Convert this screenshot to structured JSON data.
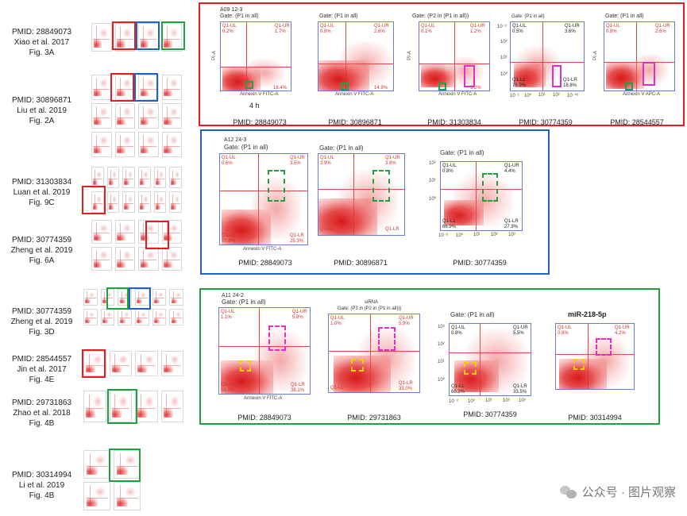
{
  "references": [
    {
      "pmid": "PMID: 28849073",
      "author": "Xiao et al. 2017",
      "fig": "Fig. 3A"
    },
    {
      "pmid": "PMID: 30896871",
      "author": "Liu et al. 2019",
      "fig": "Fig. 2A"
    },
    {
      "pmid": "PMID: 31303834",
      "author": "Luan et al. 2019",
      "fig": "Fig. 9C"
    },
    {
      "pmid": "PMID: 30774359",
      "author": "Zheng et al. 2019",
      "fig": "Fig. 6A"
    },
    {
      "pmid": "PMID: 30774359",
      "author": "Zheng et al. 2019",
      "fig": "Fig. 3D"
    },
    {
      "pmid": "PMID: 28544557",
      "author": "Jin et al. 2017",
      "fig": "Fig. 4E"
    },
    {
      "pmid": "PMID: 29731863",
      "author": "Zhao et al. 2018",
      "fig": "Fig. 4B"
    },
    {
      "pmid": "PMID: 30314994",
      "author": "Li et al. 2019",
      "fig": "Fig. 4B"
    }
  ],
  "colors": {
    "red": "#e02020",
    "blue": "#2062c0",
    "green": "#20a040",
    "magenta": "#e030c0",
    "yellow": "#f0d000"
  },
  "red_panel": {
    "plots": [
      {
        "title": "A09 12-3",
        "gate": "Gate: (P1 in all)",
        "ul": "Q1-UL",
        "ulv": "0.2%",
        "ur": "Q1-UR",
        "urv": "1.7%",
        "lrv": "16.4%",
        "xaxis": "Annexin V FITC-A",
        "yaxis": "PI-A",
        "label": "4 h",
        "pmid": "PMID: 28849073"
      },
      {
        "gate": "Gate: (P1 in all)",
        "ul": "Q1-UL",
        "ulv": "0.8%",
        "ur": "Q1-UR",
        "urv": "2.6%",
        "lrv": "14.9%",
        "xaxis": "Annexin V FITC-A",
        "pmid": "PMID: 30896871"
      },
      {
        "gate": "Gate: (P2 in (P1 in all))",
        "ul": "Q1-UL",
        "ulv": "0.1%",
        "ur": "Q1-UR",
        "urv": "1.2%",
        "lrv": "3.2%",
        "xaxis": "Annexin V FITC-A",
        "yaxis": "PI-A",
        "pmid": "PMID: 31303834"
      },
      {
        "gate": "Gate: (P1 in all)",
        "ul": "Q1-UL",
        "ulv": "0.5%",
        "ur": "Q1-UR",
        "urv": "3.6%",
        "ll": "Q1-LL",
        "llv": "76.9%",
        "lr": "Q1-LR",
        "lrv": "18.8%",
        "ticks": [
          "10⁻¹",
          "10⁰",
          "10¹",
          "10²",
          "10³",
          "10⁻⁰²",
          "10⁻²"
        ],
        "pmid": "PMID: 30774359"
      },
      {
        "gate": "Gate: (P1 in all)",
        "ul": "Q1-UL",
        "ulv": "0.8%",
        "ur": "Q1-UR",
        "urv": "2.6%",
        "xaxis": "Annexin V APC-A",
        "yaxis": "PI-A",
        "pmid": "PMID: 28544557"
      }
    ]
  },
  "blue_panel": {
    "plots": [
      {
        "title": "A12 24-3",
        "gate": "Gate: (P1 in all)",
        "ul": "Q1-UL",
        "ulv": "0.6%",
        "ur": "Q1-UR",
        "urv": "3.5%",
        "ll": "Q1-LL",
        "llv": "70.6%",
        "lr": "Q1-LR",
        "lrv": "25.3%",
        "xaxis": "Annexin V FITC-A",
        "pmid": "PMID: 28849073"
      },
      {
        "gate": "Gate: (P1 in all)",
        "ul": "Q1-UL",
        "ulv": "3.9%",
        "ur": "Q1-UR",
        "urv": "3.8%",
        "ll": "Q1-LL",
        "lr": "Q1-LR",
        "pmid": "PMID: 30896871"
      },
      {
        "gate": "Gate: (P1 in all)",
        "ul": "Q1-UL",
        "ulv": "0.8%",
        "ur": "Q1-UR",
        "urv": "4.4%",
        "ll": "Q1-LL",
        "llv": "66.9%",
        "lr": "Q1-LR",
        "lrv": "27.9%",
        "ticks": [
          "10⁻²",
          "10⁰",
          "10¹",
          "10²",
          "10³"
        ],
        "pmid": "PMID: 30774359"
      }
    ]
  },
  "green_panel": {
    "plots": [
      {
        "title": "A11 24-2",
        "gate": "Gate: (P1 in all)",
        "ul": "Q1-UL",
        "ulv": "1.1%",
        "ur": "Q1-UR",
        "urv": "5.8%",
        "ll": "Q1-LL",
        "llv": "55.0%",
        "lr": "Q1-LR",
        "lrv": "38.1%",
        "xaxis": "Annexin V FITC-A",
        "pmid": "PMID: 28849073"
      },
      {
        "subtitle": "siRNA",
        "gate": "Gate: (P3 in (P2 in (P1 in all)))",
        "ul": "Q1-UL",
        "ulv": "1.0%",
        "ur": "Q1-UR",
        "urv": "5.9%",
        "ll": "Q1-LL",
        "lr": "Q1-LR",
        "lrv": "33.0%",
        "pmid": "PMID: 29731863"
      },
      {
        "gate": "Gate: (P1 in all)",
        "ul": "Q1-UL",
        "ulv": "0.8%",
        "ur": "Q1-UR",
        "urv": "5.5%",
        "ll": "Q1-LL",
        "llv": "60.2%",
        "lr": "Q1-LR",
        "lrv": "33.5%",
        "ticks": [
          "10⁻²",
          "10⁰",
          "10¹",
          "10²",
          "10³",
          "10⁵"
        ],
        "pmid": "PMID: 30774359"
      },
      {
        "title": "miR-218-5p",
        "ul": "Q1-UL",
        "ulv": "0.8%",
        "ur": "Q1-UR",
        "urv": "4.2%",
        "pmid": "PMID: 30314994"
      }
    ]
  },
  "watermark": {
    "text": "公众号 · 图片观察",
    "icon": "wechat-icon"
  }
}
